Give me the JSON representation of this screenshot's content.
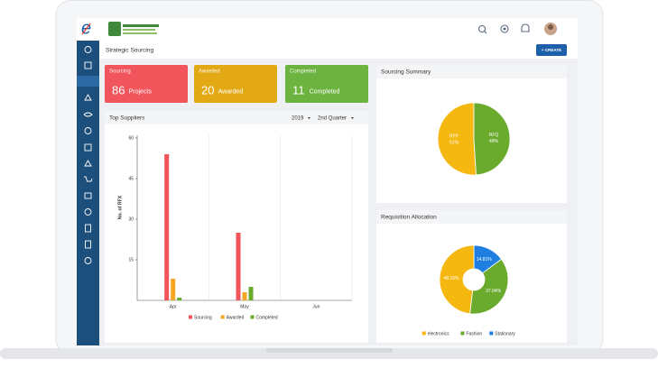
{
  "header": {
    "page_title": "Strategic Sourcing",
    "create_button": "+ CREATE"
  },
  "cards": [
    {
      "title": "Sourcing",
      "value": 86,
      "unit": "Projects",
      "color": "#f2545b"
    },
    {
      "title": "Awarded",
      "value": 20,
      "unit": "Awarded",
      "color": "#e3a915"
    },
    {
      "title": "Completed",
      "value": 11,
      "unit": "Completed",
      "color": "#6db33f"
    }
  ],
  "filters": [
    "2019",
    "2nd Quarter"
  ],
  "chart_data": [
    {
      "type": "bar",
      "title": "Top Suppliers",
      "y_label": "No. of RFX",
      "categories": [
        "Apr",
        "May",
        "Jun"
      ],
      "series": [
        {
          "name": "Sourcing",
          "color": "#f2545b",
          "values": [
            54,
            25,
            0
          ]
        },
        {
          "name": "Awarded",
          "color": "#f5a623",
          "values": [
            8,
            3,
            0
          ]
        },
        {
          "name": "Completed",
          "color": "#6aab2e",
          "values": [
            1,
            5,
            0
          ]
        }
      ],
      "ylim": [
        0,
        60
      ],
      "yticks": [
        15,
        30,
        45,
        60
      ],
      "legend": "bottom"
    },
    {
      "type": "pie",
      "title": "Sourcing Summary",
      "categories": [
        "RFP",
        "RFQ"
      ],
      "values": [
        51,
        49
      ],
      "value_labels": [
        "51%",
        "49%"
      ],
      "colors": [
        "#f5b811",
        "#6aab2e"
      ]
    },
    {
      "type": "donut",
      "title": "Requisition Allocation",
      "categories": [
        "electronics",
        "Fashion",
        "Stationary"
      ],
      "values": [
        48.15,
        37.04,
        14.81
      ],
      "value_labels": [
        "48.15%",
        "37.04%",
        "14.81%"
      ],
      "colors": [
        "#f5b811",
        "#6aab2e",
        "#1f7fe0"
      ],
      "legend": "bottom"
    }
  ]
}
